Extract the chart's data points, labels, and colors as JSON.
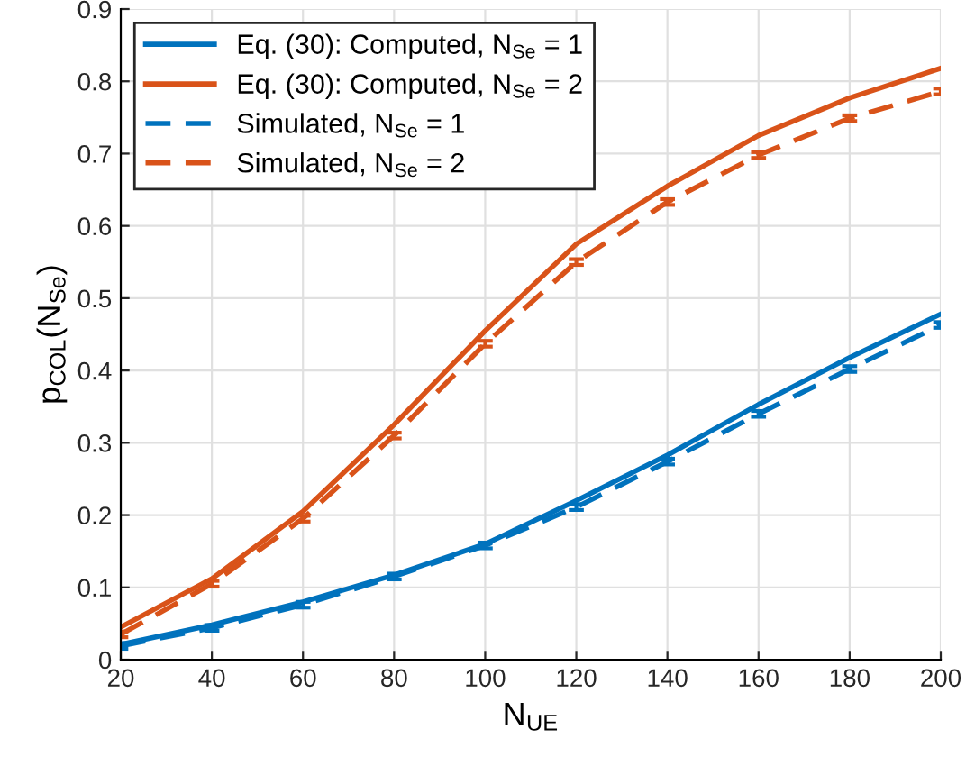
{
  "chart_data": {
    "type": "line",
    "xlabel": "N$_{UE}$",
    "ylabel": "p$_{COL}$(N$_{Se}$)",
    "x": [
      20,
      40,
      60,
      80,
      100,
      120,
      140,
      160,
      180,
      200
    ],
    "series": [
      {
        "name": "Eq. (30): Computed, N$_{Se}$ = 1",
        "color": "#0072bd",
        "line_style": "solid",
        "values": [
          0.021,
          0.048,
          0.08,
          0.117,
          0.16,
          0.22,
          0.283,
          0.353,
          0.418,
          0.478
        ]
      },
      {
        "name": "Eq. (30): Computed, N$_{Se}$ = 2",
        "color": "#d95319",
        "line_style": "solid",
        "values": [
          0.045,
          0.112,
          0.205,
          0.325,
          0.455,
          0.575,
          0.655,
          0.725,
          0.777,
          0.818
        ]
      },
      {
        "name": "Simulated, N$_{Se}$ = 1",
        "color": "#0072bd",
        "line_style": "dashed",
        "values": [
          0.019,
          0.044,
          0.076,
          0.115,
          0.158,
          0.211,
          0.274,
          0.34,
          0.402,
          0.463
        ],
        "errors": [
          0.004,
          0.004,
          0.004,
          0.004,
          0.004,
          0.004,
          0.004,
          0.004,
          0.004,
          0.004
        ]
      },
      {
        "name": "Simulated, N$_{Se}$ = 2",
        "color": "#d95319",
        "line_style": "dashed",
        "values": [
          0.035,
          0.105,
          0.195,
          0.31,
          0.437,
          0.55,
          0.633,
          0.698,
          0.749,
          0.786
        ],
        "errors": [
          0.004,
          0.004,
          0.004,
          0.004,
          0.004,
          0.004,
          0.004,
          0.004,
          0.004,
          0.004
        ]
      }
    ],
    "xlim": [
      20,
      200
    ],
    "xticks": [
      20,
      40,
      60,
      80,
      100,
      120,
      140,
      160,
      180,
      200
    ],
    "ylim": [
      0,
      0.9
    ],
    "yticks": [
      0,
      0.1,
      0.2,
      0.3,
      0.4,
      0.5,
      0.6,
      0.7,
      0.8,
      0.9
    ],
    "grid": true,
    "legend": "top left"
  }
}
